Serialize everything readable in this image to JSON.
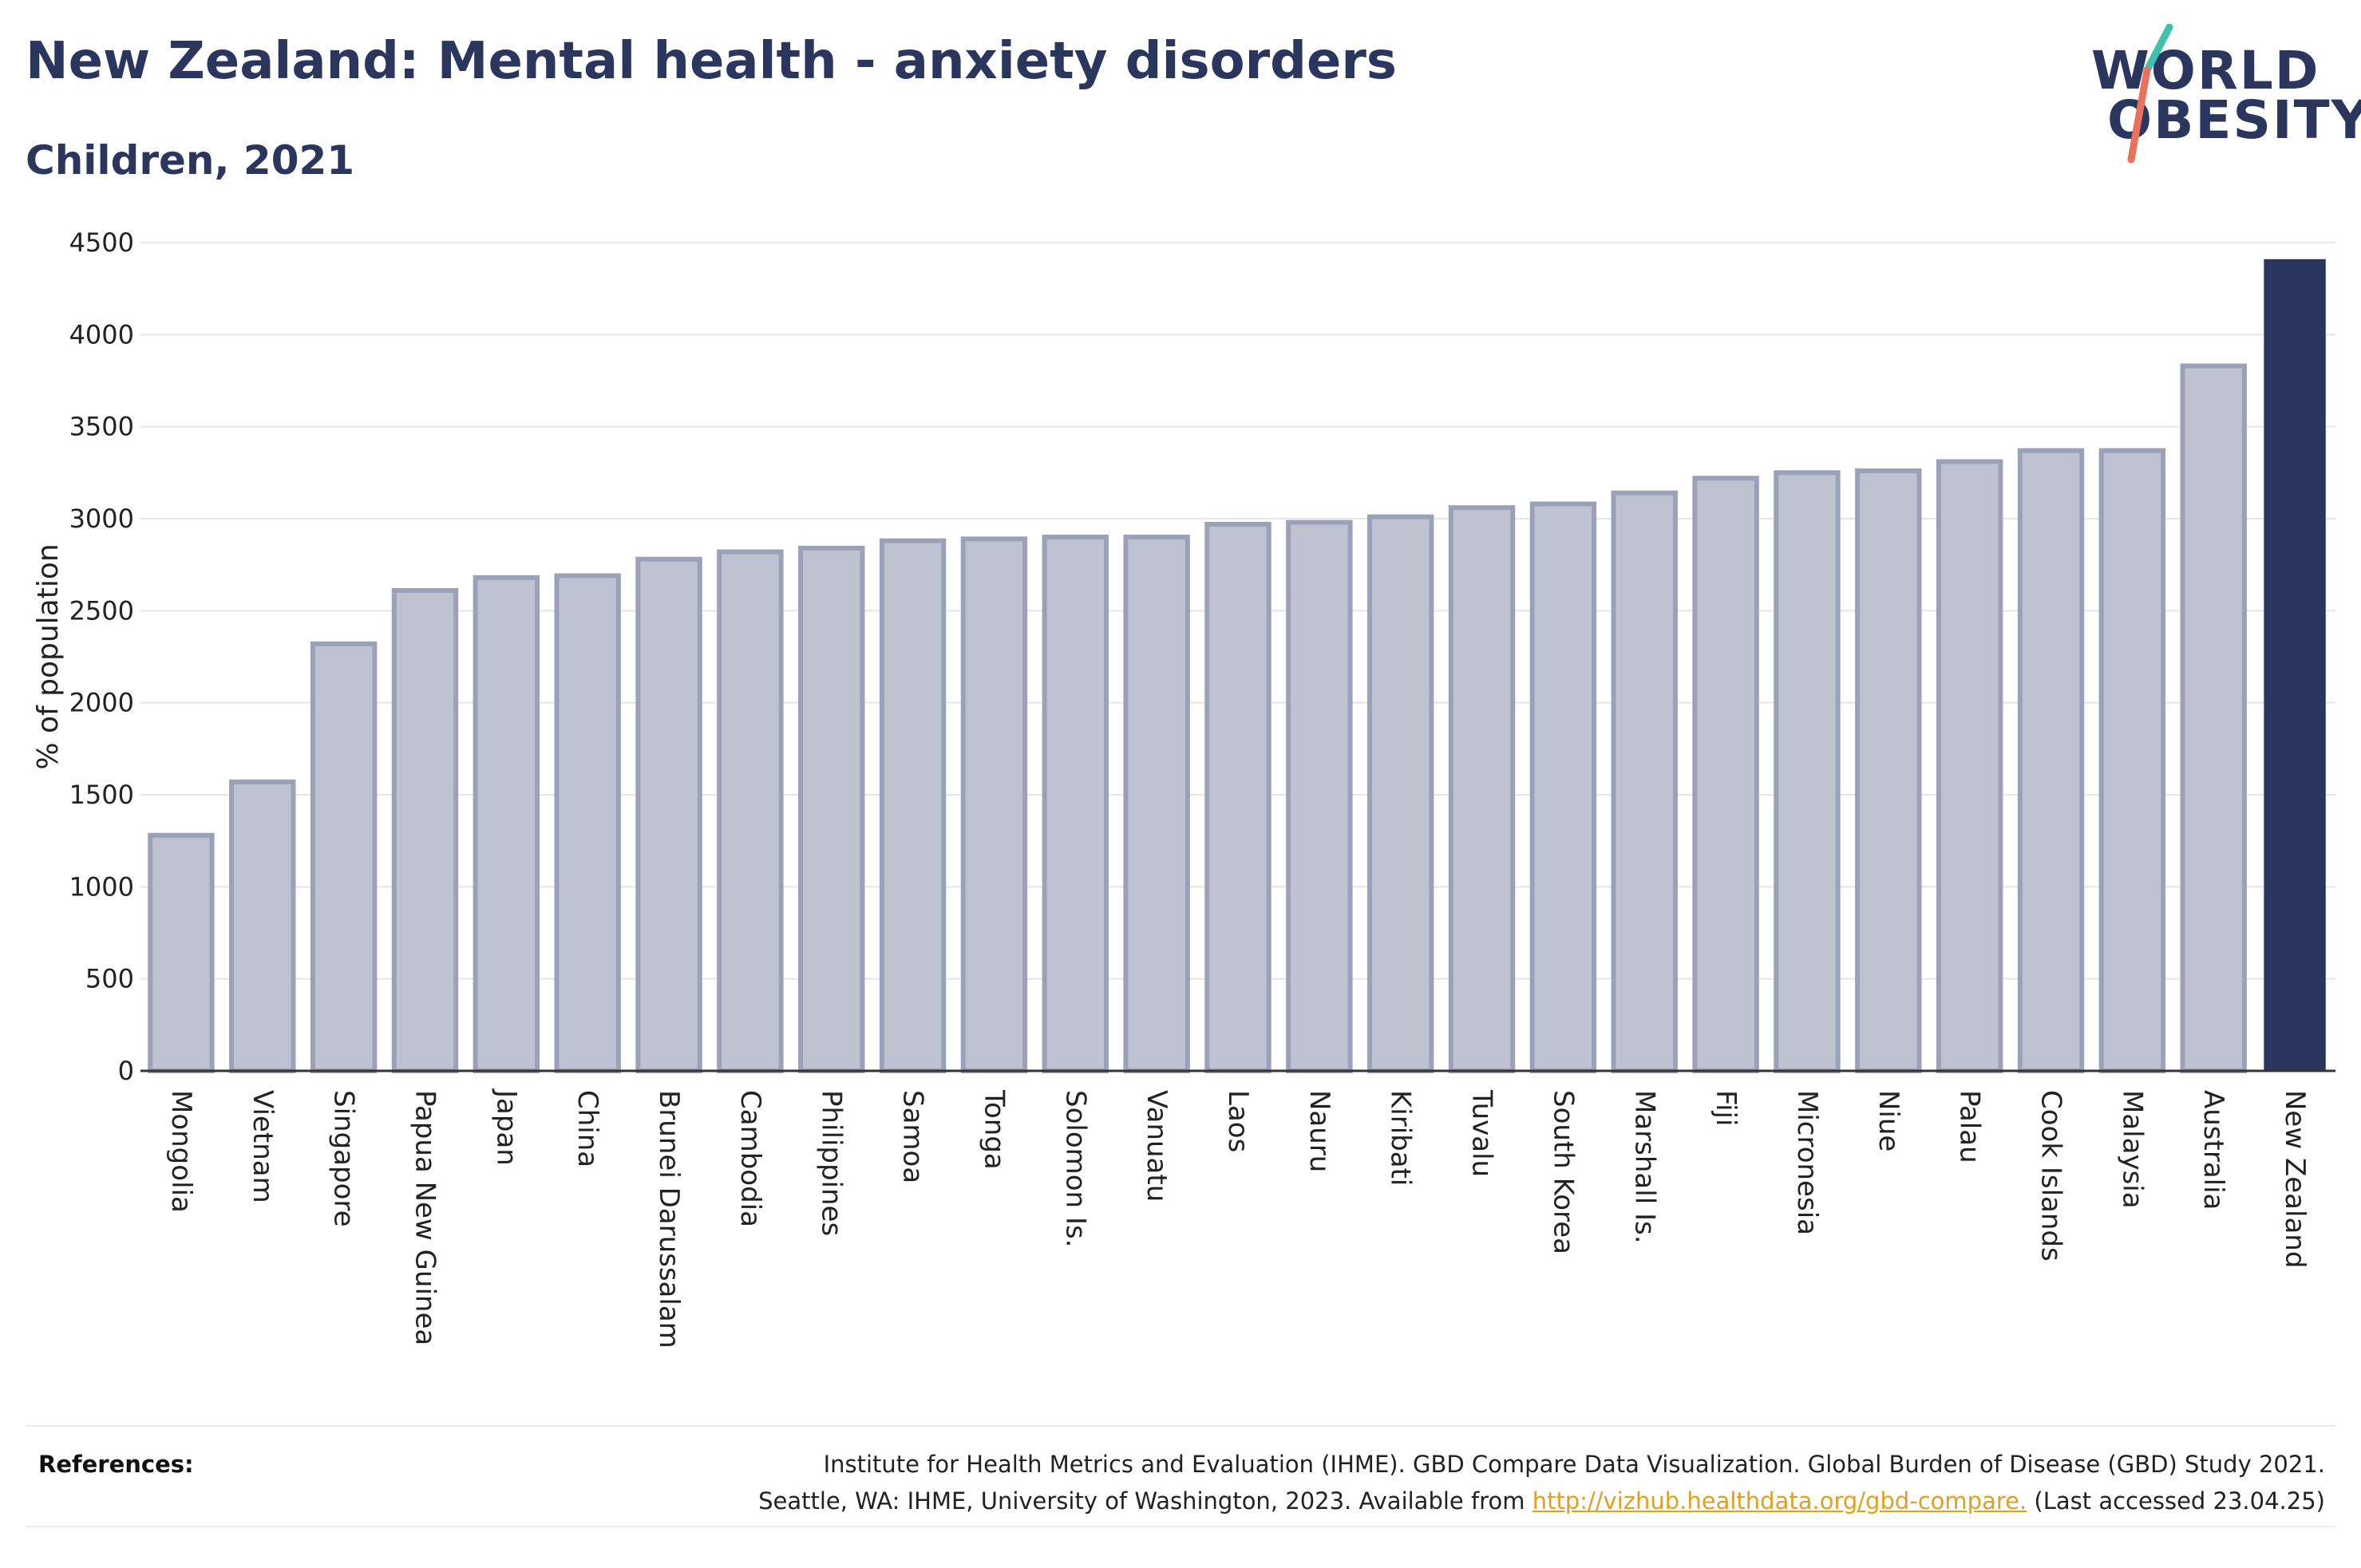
{
  "header": {
    "title": "New Zealand: Mental health - anxiety disorders",
    "subtitle": "Children, 2021"
  },
  "logo": {
    "line1": "WORLD",
    "line2": "OBESITY",
    "accent_colors": [
      "#3fc1b0",
      "#e8735a"
    ]
  },
  "chart_data": {
    "type": "bar",
    "title": "New Zealand: Mental health - anxiety disorders",
    "subtitle": "Children, 2021",
    "xlabel": "",
    "ylabel": "% of population",
    "ylim": [
      0,
      4500
    ],
    "yticks": [
      0,
      500,
      1000,
      1500,
      2000,
      2500,
      3000,
      3500,
      4000,
      4500
    ],
    "grid": true,
    "categories": [
      "Mongolia",
      "Vietnam",
      "Singapore",
      "Papua New Guinea",
      "Japan",
      "China",
      "Brunei Darussalam",
      "Cambodia",
      "Philippines",
      "Samoa",
      "Tonga",
      "Solomon Is.",
      "Vanuatu",
      "Laos",
      "Nauru",
      "Kiribati",
      "Tuvalu",
      "South Korea",
      "Marshall Is.",
      "Fiji",
      "Micronesia",
      "Niue",
      "Palau",
      "Cook Islands",
      "Malaysia",
      "Australia",
      "New Zealand"
    ],
    "values": [
      1280,
      1570,
      2320,
      2610,
      2680,
      2690,
      2780,
      2820,
      2840,
      2880,
      2890,
      2900,
      2900,
      2970,
      2980,
      3010,
      3060,
      3080,
      3140,
      3220,
      3250,
      3260,
      3310,
      3370,
      3370,
      3830,
      4410
    ],
    "highlight": "New Zealand",
    "colors": {
      "bar": "#bfc3d1",
      "bar_outline": "#9aa1b8",
      "highlight": "#2b365f",
      "grid": "#e6e6e6",
      "axis": "#333333"
    }
  },
  "references": {
    "label": "References:",
    "line1": "Institute for Health Metrics and Evaluation (IHME). GBD Compare Data Visualization. Global Burden of Disease (GBD) Study 2021.",
    "line2_prefix": "Seattle, WA: IHME, University of Washington, 2023. Available from ",
    "link": "http://vizhub.healthdata.org/gbd-compare.",
    "line2_suffix": " (Last accessed 23.04.25)"
  }
}
